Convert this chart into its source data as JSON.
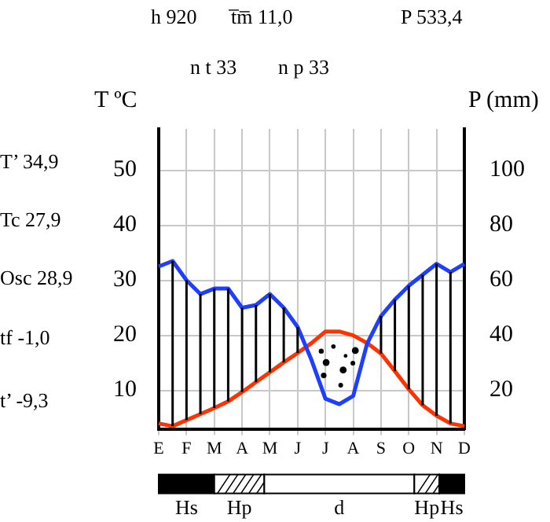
{
  "chart_data": {
    "type": "line",
    "ylabel": "T ºC",
    "y2label": "P (mm)",
    "categories": [
      "E",
      null,
      "F",
      null,
      "M",
      null,
      "A",
      null,
      "M",
      null,
      "J",
      null,
      "J",
      null,
      "A",
      null,
      "S",
      null,
      "O",
      null,
      "N",
      null,
      "D"
    ],
    "ylim": [
      3,
      57.5
    ],
    "yticks": [
      10,
      20,
      30,
      40,
      50
    ],
    "y2lim": [
      6,
      115
    ],
    "y2ticks": [
      20,
      40,
      60,
      80,
      100
    ],
    "grid": true,
    "legend": false,
    "marker": "none",
    "line_style": "solid",
    "series": [
      {
        "color": "#1f3fff",
        "axis": "y2",
        "values": [
          65,
          67,
          60,
          55,
          57,
          57,
          50,
          51,
          55,
          50,
          43,
          31,
          17,
          15,
          18,
          37,
          47,
          53,
          58,
          62,
          66,
          63,
          66
        ]
      },
      {
        "color": "#ff3300",
        "values": [
          4,
          3.5,
          4.6,
          5.7,
          6.8,
          8,
          9.7,
          11.5,
          13.3,
          15.1,
          16.8,
          18.6,
          20.7,
          20.7,
          20,
          18.6,
          16.7,
          13.5,
          10.2,
          7.3,
          5.4,
          4,
          3.5
        ]
      }
    ],
    "annotations": [
      "h 920",
      "t̅m̅ 11,0",
      "P 533,4",
      "n t 33",
      "n p 33",
      "T’ 34,9",
      "Tc 27,9",
      "Osc 28,9",
      "tf -1,0",
      "t’ -9,3",
      "Hs",
      "Hp",
      "d",
      "Hp",
      "Hs"
    ]
  }
}
